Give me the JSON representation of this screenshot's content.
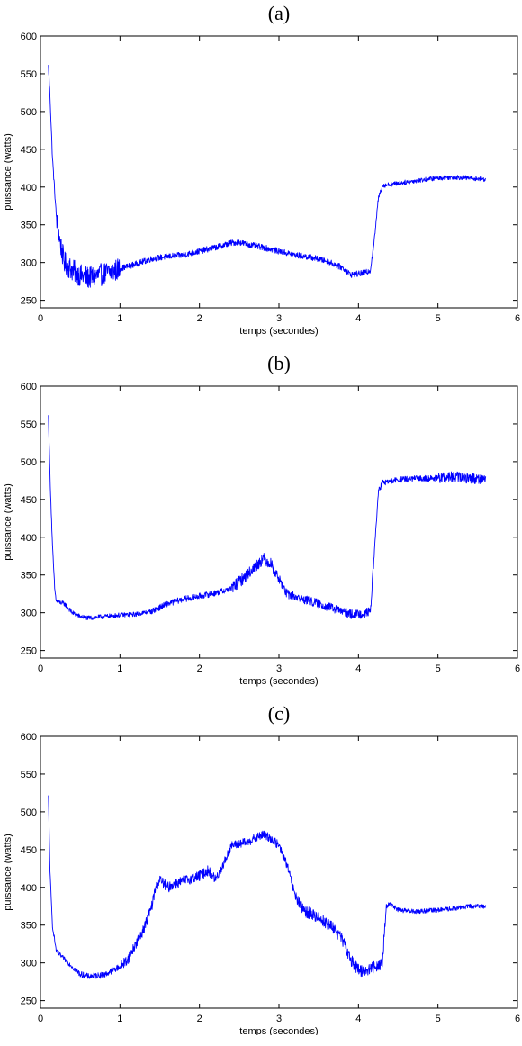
{
  "chart_data": [
    {
      "type": "line",
      "title": "(a)",
      "xlabel": "temps (secondes)",
      "ylabel": "puissance (watts)",
      "xlim": [
        0,
        6
      ],
      "ylim": [
        240,
        600
      ],
      "xticks": [
        0,
        1,
        2,
        3,
        4,
        5,
        6
      ],
      "yticks": [
        250,
        300,
        350,
        400,
        450,
        500,
        550,
        600
      ],
      "grid": false,
      "series": [
        {
          "color": "#0000ff",
          "points": [
            [
              0.1,
              560
            ],
            [
              0.12,
              520
            ],
            [
              0.15,
              440
            ],
            [
              0.2,
              360
            ],
            [
              0.25,
              325
            ],
            [
              0.3,
              300
            ],
            [
              0.4,
              290
            ],
            [
              0.5,
              283
            ],
            [
              0.6,
              280
            ],
            [
              0.7,
              282
            ],
            [
              0.8,
              285
            ],
            [
              0.9,
              288
            ],
            [
              1.0,
              292
            ],
            [
              1.2,
              298
            ],
            [
              1.4,
              305
            ],
            [
              1.6,
              308
            ],
            [
              1.8,
              310
            ],
            [
              2.0,
              315
            ],
            [
              2.2,
              320
            ],
            [
              2.4,
              326
            ],
            [
              2.5,
              327
            ],
            [
              2.6,
              324
            ],
            [
              2.8,
              320
            ],
            [
              3.0,
              315
            ],
            [
              3.2,
              310
            ],
            [
              3.4,
              307
            ],
            [
              3.6,
              302
            ],
            [
              3.8,
              293
            ],
            [
              3.9,
              284
            ],
            [
              4.0,
              285
            ],
            [
              4.1,
              287
            ],
            [
              4.15,
              290
            ],
            [
              4.2,
              330
            ],
            [
              4.25,
              385
            ],
            [
              4.3,
              402
            ],
            [
              4.5,
              405
            ],
            [
              4.7,
              408
            ],
            [
              5.0,
              412
            ],
            [
              5.2,
              413
            ],
            [
              5.4,
              412
            ],
            [
              5.6,
              410
            ]
          ],
          "noise": [
            [
              0.0,
              0.2,
              4
            ],
            [
              0.2,
              1.0,
              15
            ],
            [
              1.0,
              4.2,
              4
            ],
            [
              4.2,
              5.6,
              3
            ]
          ]
        }
      ]
    },
    {
      "type": "line",
      "title": "(b)",
      "xlabel": "temps (secondes)",
      "ylabel": "puissance (watts)",
      "xlim": [
        0,
        6
      ],
      "ylim": [
        240,
        600
      ],
      "xticks": [
        0,
        1,
        2,
        3,
        4,
        5,
        6
      ],
      "yticks": [
        250,
        300,
        350,
        400,
        450,
        500,
        550,
        600
      ],
      "grid": false,
      "series": [
        {
          "color": "#0000ff",
          "points": [
            [
              0.1,
              560
            ],
            [
              0.12,
              480
            ],
            [
              0.15,
              390
            ],
            [
              0.18,
              330
            ],
            [
              0.2,
              315
            ],
            [
              0.3,
              312
            ],
            [
              0.4,
              300
            ],
            [
              0.5,
              295
            ],
            [
              0.6,
              293
            ],
            [
              0.8,
              295
            ],
            [
              1.0,
              297
            ],
            [
              1.2,
              298
            ],
            [
              1.4,
              302
            ],
            [
              1.6,
              312
            ],
            [
              1.8,
              318
            ],
            [
              2.0,
              322
            ],
            [
              2.2,
              326
            ],
            [
              2.4,
              332
            ],
            [
              2.6,
              350
            ],
            [
              2.8,
              372
            ],
            [
              2.9,
              365
            ],
            [
              3.0,
              345
            ],
            [
              3.1,
              325
            ],
            [
              3.3,
              318
            ],
            [
              3.5,
              312
            ],
            [
              3.7,
              305
            ],
            [
              3.9,
              298
            ],
            [
              4.0,
              298
            ],
            [
              4.1,
              300
            ],
            [
              4.15,
              302
            ],
            [
              4.2,
              380
            ],
            [
              4.25,
              460
            ],
            [
              4.3,
              472
            ],
            [
              4.5,
              476
            ],
            [
              4.8,
              478
            ],
            [
              5.0,
              478
            ],
            [
              5.2,
              480
            ],
            [
              5.4,
              478
            ],
            [
              5.6,
              477
            ]
          ],
          "noise": [
            [
              0.0,
              0.4,
              3
            ],
            [
              0.4,
              1.4,
              3
            ],
            [
              1.4,
              2.4,
              4
            ],
            [
              2.4,
              3.0,
              8
            ],
            [
              3.0,
              4.2,
              6
            ],
            [
              4.2,
              5.0,
              4
            ],
            [
              5.0,
              5.6,
              7
            ]
          ]
        }
      ]
    },
    {
      "type": "line",
      "title": "(c)",
      "xlabel": "temps (secondes)",
      "ylabel": "puissance (watts)",
      "xlim": [
        0,
        6
      ],
      "ylim": [
        240,
        600
      ],
      "xticks": [
        0,
        1,
        2,
        3,
        4,
        5,
        6
      ],
      "yticks": [
        250,
        300,
        350,
        400,
        450,
        500,
        550,
        600
      ],
      "grid": false,
      "series": [
        {
          "color": "#0000ff",
          "points": [
            [
              0.1,
              520
            ],
            [
              0.12,
              420
            ],
            [
              0.15,
              350
            ],
            [
              0.2,
              315
            ],
            [
              0.3,
              305
            ],
            [
              0.4,
              295
            ],
            [
              0.5,
              285
            ],
            [
              0.6,
              282
            ],
            [
              0.8,
              284
            ],
            [
              1.0,
              295
            ],
            [
              1.1,
              305
            ],
            [
              1.2,
              325
            ],
            [
              1.3,
              345
            ],
            [
              1.4,
              375
            ],
            [
              1.45,
              400
            ],
            [
              1.5,
              410
            ],
            [
              1.6,
              400
            ],
            [
              1.7,
              405
            ],
            [
              1.9,
              412
            ],
            [
              2.0,
              415
            ],
            [
              2.1,
              422
            ],
            [
              2.15,
              418
            ],
            [
              2.2,
              410
            ],
            [
              2.3,
              430
            ],
            [
              2.4,
              455
            ],
            [
              2.6,
              460
            ],
            [
              2.8,
              470
            ],
            [
              2.9,
              465
            ],
            [
              3.0,
              455
            ],
            [
              3.1,
              430
            ],
            [
              3.2,
              390
            ],
            [
              3.3,
              370
            ],
            [
              3.5,
              360
            ],
            [
              3.7,
              345
            ],
            [
              3.8,
              330
            ],
            [
              3.9,
              305
            ],
            [
              4.0,
              290
            ],
            [
              4.1,
              290
            ],
            [
              4.2,
              295
            ],
            [
              4.3,
              300
            ],
            [
              4.35,
              375
            ],
            [
              4.4,
              378
            ],
            [
              4.5,
              370
            ],
            [
              4.7,
              368
            ],
            [
              5.0,
              370
            ],
            [
              5.2,
              372
            ],
            [
              5.4,
              375
            ],
            [
              5.6,
              375
            ]
          ],
          "noise": [
            [
              0.0,
              0.4,
              3
            ],
            [
              0.4,
              1.0,
              4
            ],
            [
              1.0,
              2.2,
              7
            ],
            [
              2.2,
              3.2,
              6
            ],
            [
              3.2,
              4.35,
              8
            ],
            [
              4.35,
              5.6,
              3
            ]
          ]
        }
      ]
    }
  ]
}
